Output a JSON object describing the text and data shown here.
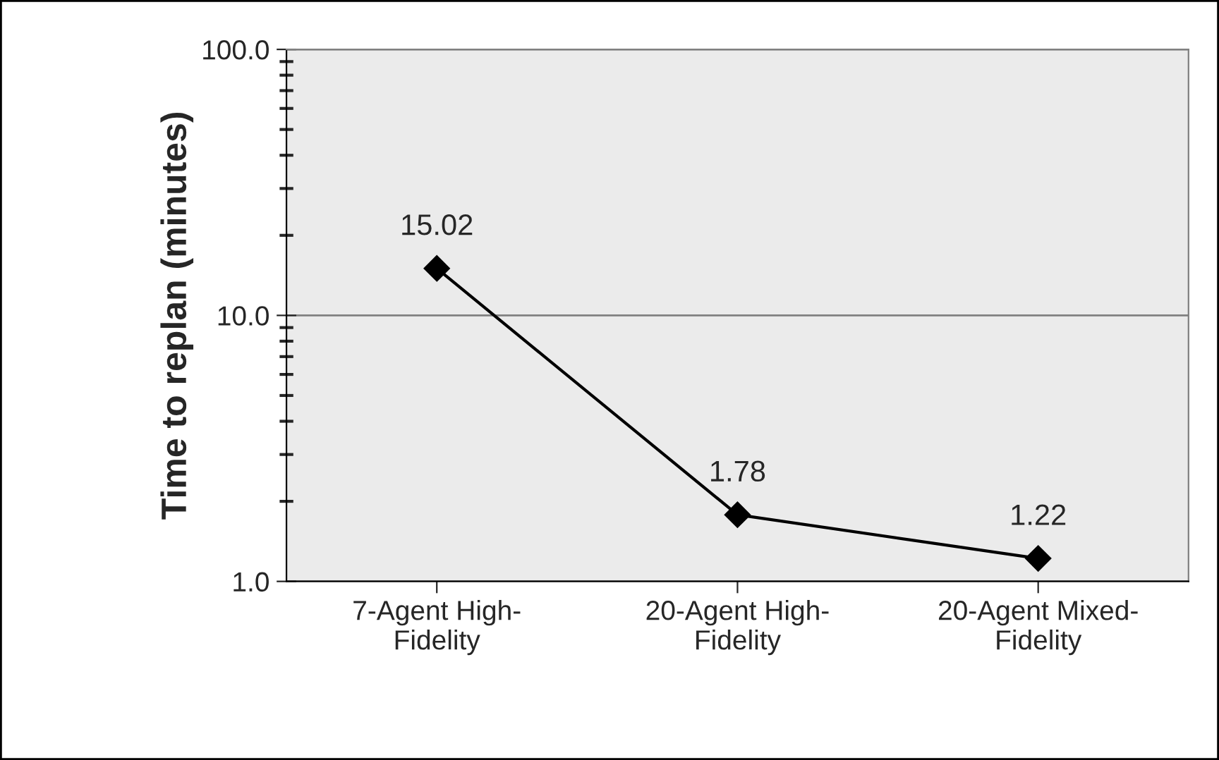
{
  "chart_data": {
    "type": "line",
    "ylabel": "Time to replan (minutes)",
    "categories": [
      "7-Agent High-\nFidelity",
      "20-Agent High-\nFidelity",
      "20-Agent Mixed-\nFidelity"
    ],
    "series": [
      {
        "color": "#000000",
        "values": [
          15.02,
          1.78,
          1.22
        ]
      }
    ],
    "log": true,
    "ylim": [
      1,
      100
    ],
    "yticks": [
      {
        "value": 1,
        "label": "1.0"
      },
      {
        "value": 10,
        "label": "10.0"
      },
      {
        "value": 100,
        "label": "100.0"
      }
    ],
    "grid": "y",
    "marker": "diamond",
    "line_style": "solid",
    "data_labels": true,
    "legend": false
  }
}
